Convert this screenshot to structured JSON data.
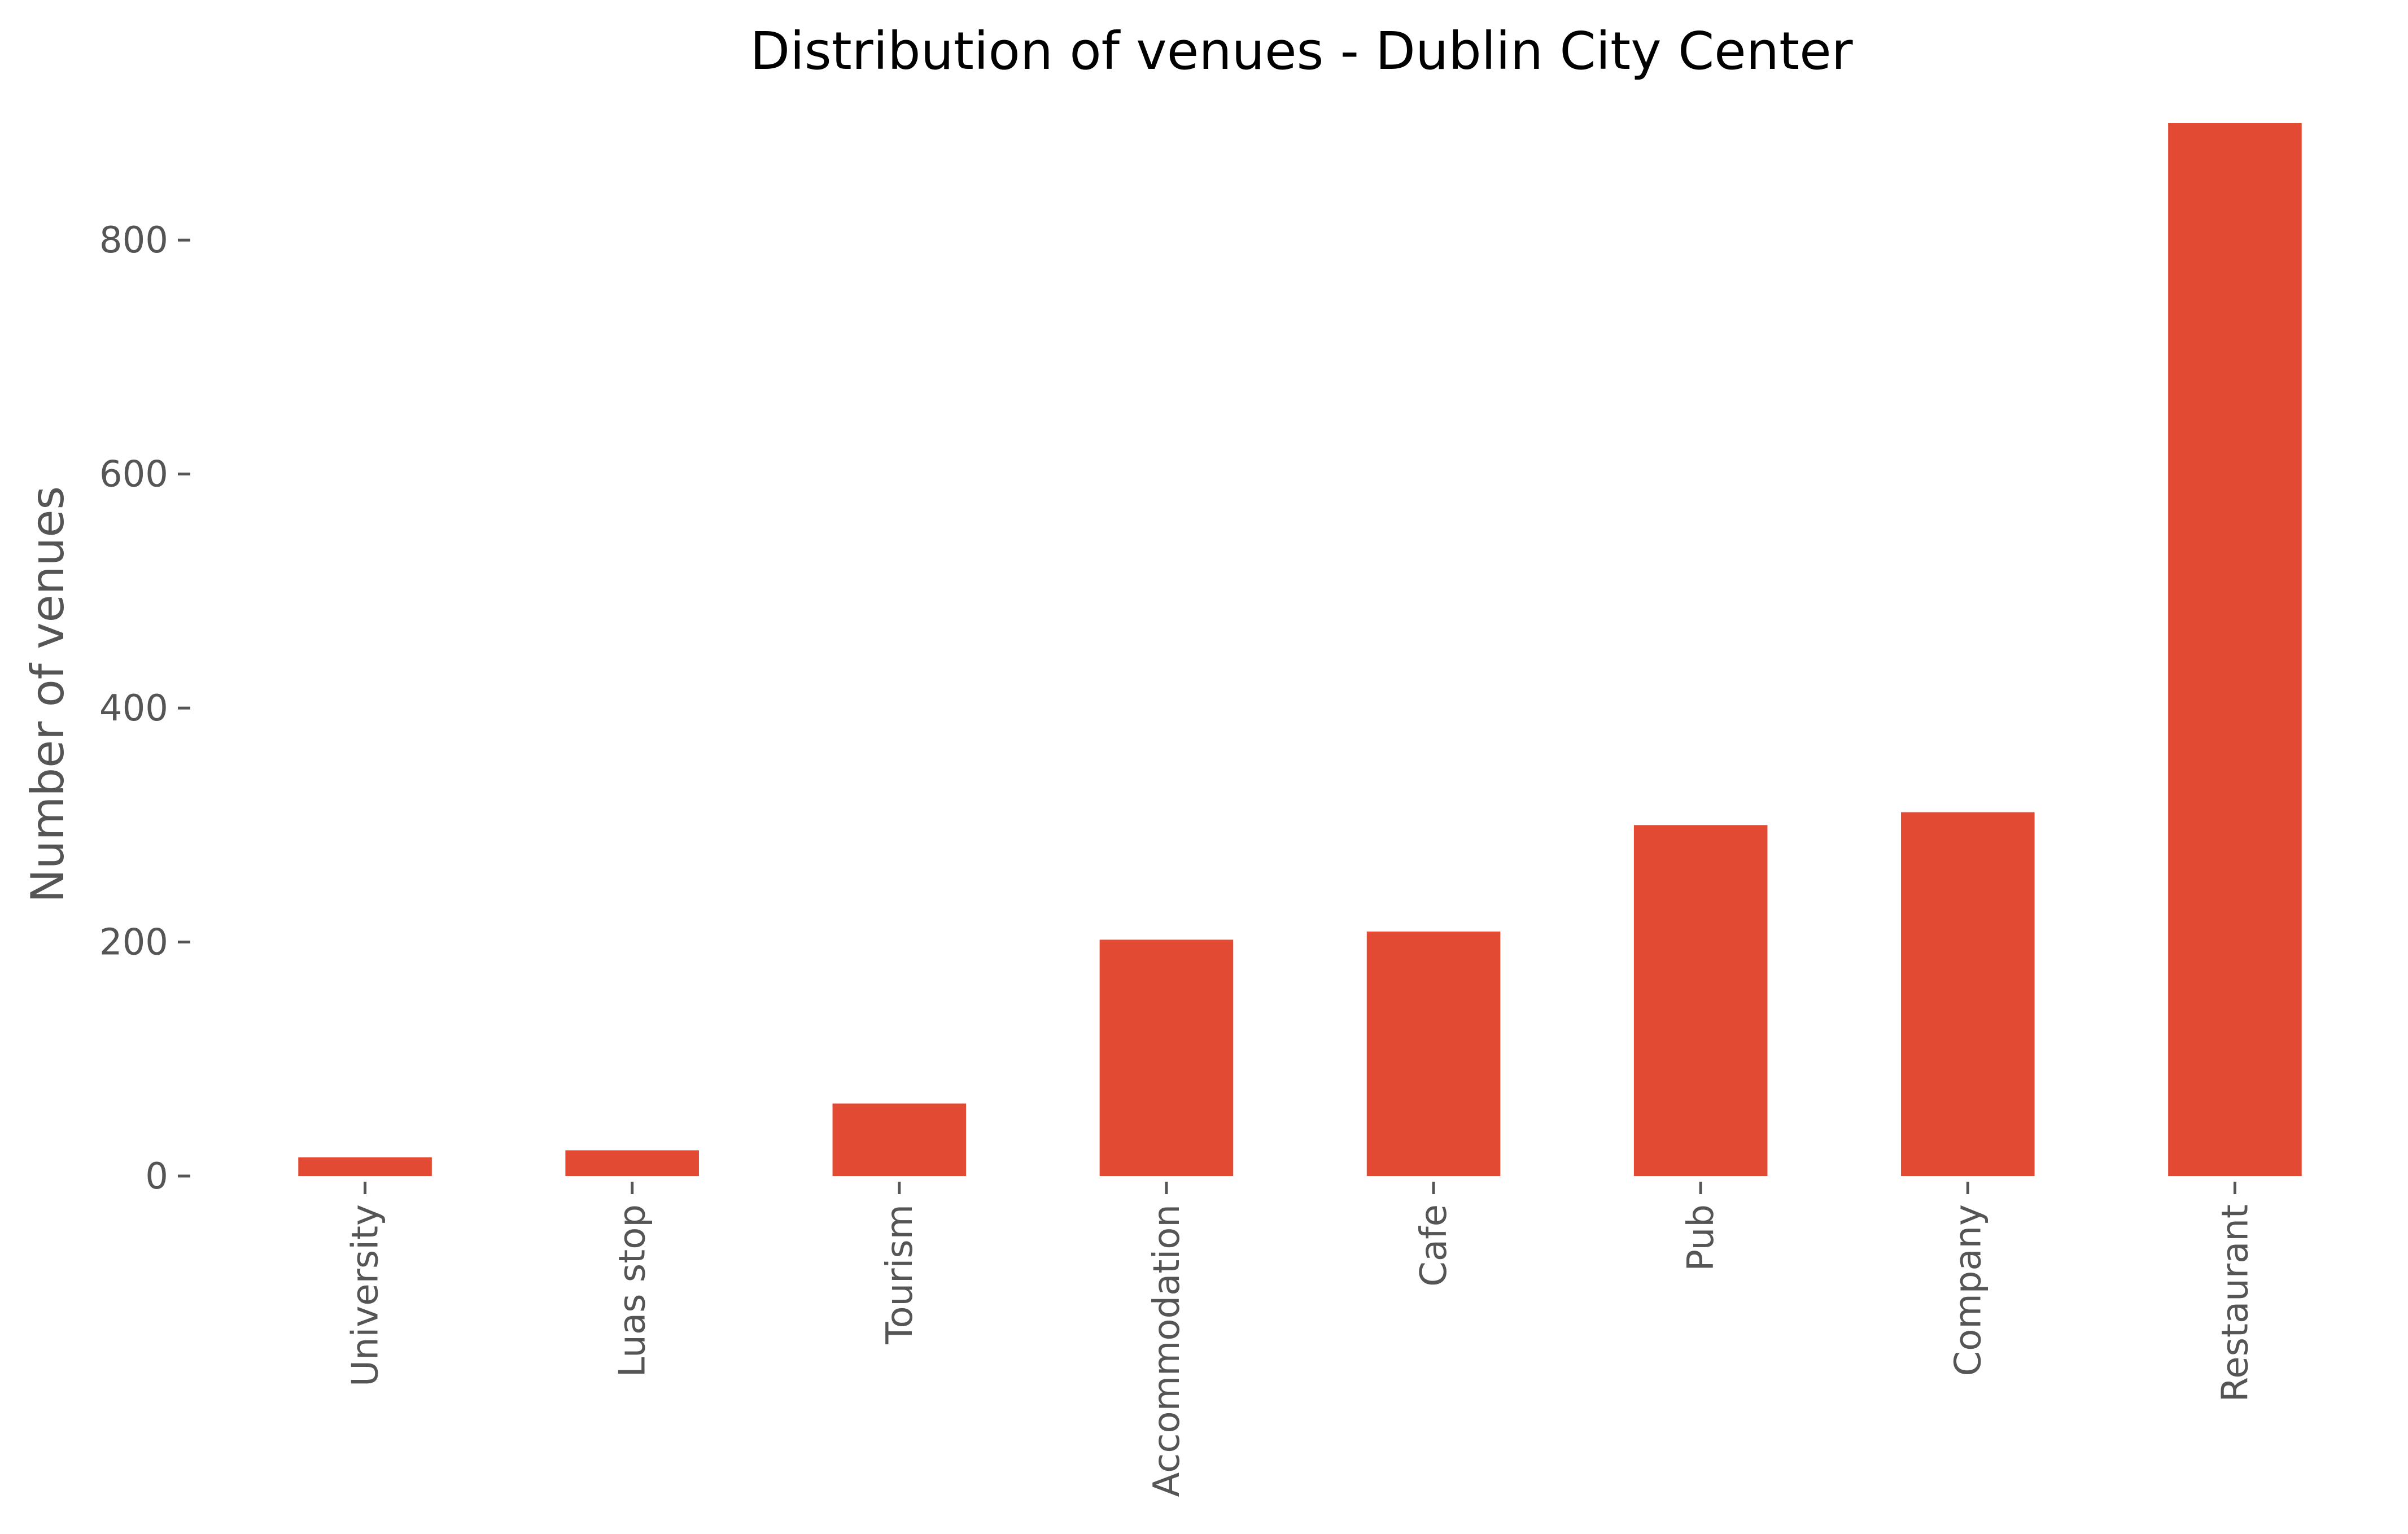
{
  "chart_data": {
    "type": "bar",
    "title": "Distribution of venues - Dublin City Center",
    "xlabel": "",
    "ylabel": "Number of venues",
    "categories": [
      "University",
      "Luas stop",
      "Tourism",
      "Accommodation",
      "Cafe",
      "Pub",
      "Company",
      "Restaurant"
    ],
    "values": [
      16,
      22,
      62,
      202,
      209,
      300,
      311,
      900
    ],
    "ylim": [
      0,
      900
    ],
    "yticks": [
      0,
      200,
      400,
      600,
      800
    ],
    "ytick_labels": [
      "0",
      "200",
      "400",
      "600",
      "800"
    ],
    "grid": false,
    "orientation": "vertical",
    "bar_color": "#E24A33",
    "background": "#FFFFFF"
  }
}
